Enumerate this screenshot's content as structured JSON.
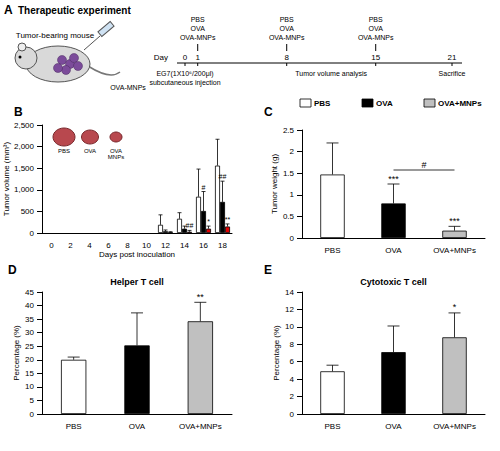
{
  "schematic": {
    "panel": "A",
    "title": "Therapeutic experiment",
    "mouse_label": "Tumor-bearing mouse",
    "syringe_label": "OVA-MNPs",
    "axis_label": "Day",
    "days": [
      0,
      1,
      8,
      15,
      21
    ],
    "treatments": [
      {
        "day": 1,
        "lines": [
          "PBS",
          "OVA",
          "OVA-MNPs"
        ]
      },
      {
        "day": 8,
        "lines": [
          "PBS",
          "OVA",
          "OVA-MNPs"
        ]
      },
      {
        "day": 15,
        "lines": [
          "PBS",
          "OVA",
          "OVA-MNPs"
        ]
      }
    ],
    "injection": {
      "day": 0,
      "lines": [
        "EG7(1X10⁶/200μl)",
        "subcutaneous injection"
      ]
    },
    "analysis": {
      "from": 8,
      "to": 15,
      "text": "Tumor volume analysis"
    },
    "end": {
      "day": 21,
      "text": "Sacrifice"
    }
  },
  "chart_data": [
    {
      "type": "bar",
      "xlabel": "Days post inoculation",
      "ylabel": "Tumor volume (mm³)",
      "categories": [
        "0",
        "2",
        "4",
        "6",
        "8",
        "10",
        "12",
        "14",
        "16",
        "18"
      ],
      "series": [
        {
          "name": "PBS",
          "color": "#ffffff",
          "values": [
            null,
            null,
            null,
            null,
            null,
            null,
            190,
            330,
            840,
            1560
          ],
          "errors": [
            null,
            null,
            null,
            null,
            null,
            null,
            230,
            140,
            640,
            610
          ]
        },
        {
          "name": "OVA",
          "color": "#000000",
          "values": [
            null,
            null,
            null,
            null,
            null,
            null,
            40,
            100,
            510,
            720
          ],
          "errors": [
            null,
            null,
            null,
            null,
            null,
            null,
            30,
            60,
            450,
            480
          ]
        },
        {
          "name": "OVA+MNPs",
          "color": "#e00000",
          "values": [
            null,
            null,
            null,
            null,
            null,
            null,
            15,
            30,
            100,
            150
          ],
          "errors": [
            null,
            null,
            null,
            null,
            null,
            null,
            15,
            30,
            60,
            60
          ]
        }
      ],
      "ylim": [
        0,
        2500
      ],
      "yticks": [
        0,
        500,
        1000,
        1500,
        2000,
        2500
      ],
      "grid": false,
      "inset_labels": [
        "PBS",
        "OVA",
        "OVA\nMNPs"
      ],
      "annotations": [
        {
          "text": "B"
        },
        {
          "text": "##",
          "category": "14",
          "series": "OVA+MNPs"
        },
        {
          "text": "#",
          "category": "16",
          "series": "OVA"
        },
        {
          "text": "*",
          "category": "16",
          "series": "OVA+MNPs"
        },
        {
          "text": "##",
          "category": "18",
          "series": "OVA"
        },
        {
          "text": "**",
          "category": "18",
          "series": "OVA+MNPs"
        }
      ]
    },
    {
      "type": "bar",
      "ylabel": "Tumor weight (g)",
      "categories": [
        "PBS",
        "OVA",
        "OVA+MNPs"
      ],
      "values": [
        1.47,
        0.8,
        0.17
      ],
      "errors": [
        0.73,
        0.45,
        0.1
      ],
      "colors": [
        "#ffffff",
        "#000000",
        "#c0c0c0"
      ],
      "ylim": [
        0,
        2.5
      ],
      "yticks": [
        0,
        0.5,
        1,
        1.5,
        2,
        2.5
      ],
      "grid": false,
      "legend": "top right",
      "annotations": [
        {
          "text": "C"
        },
        {
          "text": "***",
          "category": "OVA"
        },
        {
          "text": "***",
          "category": "OVA+MNPs"
        },
        {
          "text": "#",
          "bracket": [
            "OVA",
            "OVA+MNPs"
          ]
        }
      ]
    },
    {
      "type": "bar",
      "title": "Helper T cell",
      "ylabel": "Percentage (%)",
      "categories": [
        "PBS",
        "OVA",
        "OVA+MNPs"
      ],
      "values": [
        20,
        25.3,
        34.2
      ],
      "errors": [
        1,
        12,
        7
      ],
      "colors": [
        "#ffffff",
        "#000000",
        "#c0c0c0"
      ],
      "ylim": [
        0,
        45
      ],
      "yticks": [
        0,
        5,
        10,
        15,
        20,
        25,
        30,
        35,
        40,
        45
      ],
      "grid": false,
      "annotations": [
        {
          "text": "D"
        },
        {
          "text": "**",
          "category": "OVA+MNPs"
        }
      ]
    },
    {
      "type": "bar",
      "title": "Cytotoxic T cell",
      "ylabel": "Percentage (%)",
      "categories": [
        "PBS",
        "OVA",
        "OVA+MNPs"
      ],
      "values": [
        4.9,
        7.1,
        8.8
      ],
      "errors": [
        0.7,
        3,
        2.8
      ],
      "colors": [
        "#ffffff",
        "#000000",
        "#c0c0c0"
      ],
      "ylim": [
        0,
        14
      ],
      "yticks": [
        0,
        2,
        4,
        6,
        8,
        10,
        12,
        14
      ],
      "grid": false,
      "annotations": [
        {
          "text": "E"
        },
        {
          "text": "*",
          "category": "OVA+MNPs"
        }
      ]
    }
  ]
}
